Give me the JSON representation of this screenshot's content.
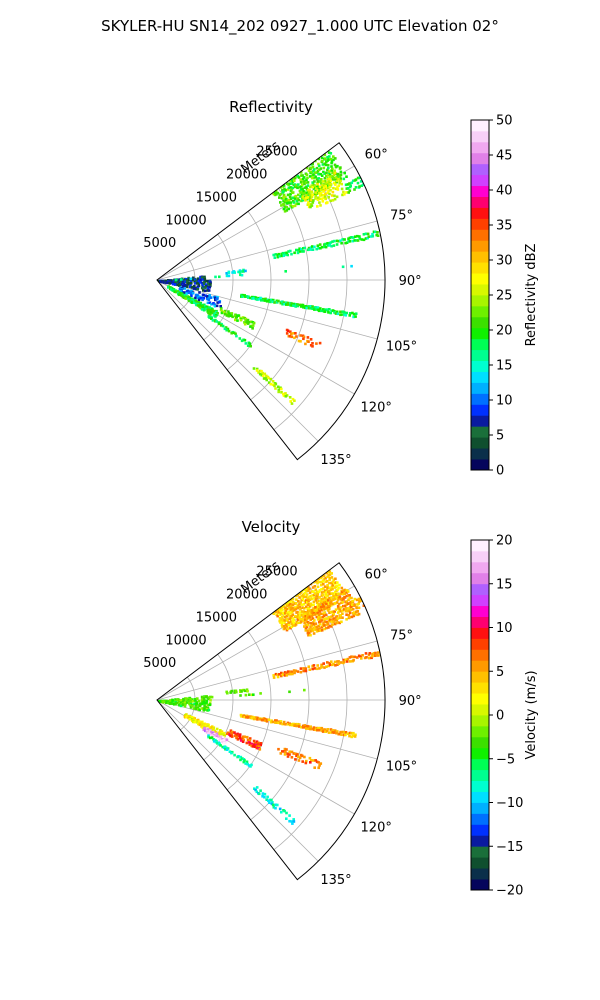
{
  "figure": {
    "title": "SKYLER-HU  SN14_202  0927_1.000 UTC Elevation 02°"
  },
  "chart_data": [
    {
      "type": "polar-sector",
      "title": "Reflectivity",
      "radial_label": "Meters",
      "radial_ticks": [
        5000,
        10000,
        15000,
        20000,
        25000
      ],
      "r_max_m": 30000,
      "theta_ticks": [
        "60°",
        "75°",
        "90°",
        "105°",
        "120°",
        "135°"
      ],
      "theta_range_deg": [
        53,
        142
      ],
      "colorbar": {
        "label": "Reflectivity dBZ",
        "min": 0,
        "max": 50,
        "ticks": [
          "0",
          "5",
          "10",
          "15",
          "20",
          "25",
          "30",
          "35",
          "40",
          "45",
          "50"
        ],
        "colors": [
          "#05055c",
          "#0a2f4a",
          "#0f4f2e",
          "#1a6f3a",
          "#0a1aa0",
          "#0030ff",
          "#0070ff",
          "#00b0ff",
          "#00dfff",
          "#00ffd0",
          "#00ff90",
          "#00ff55",
          "#10f000",
          "#3ce000",
          "#6ef000",
          "#a8f500",
          "#d8f800",
          "#ffff00",
          "#ffe000",
          "#ffc000",
          "#ff9a00",
          "#ff7000",
          "#ff4000",
          "#ff1010",
          "#ff0070",
          "#ff00d0",
          "#d040ff",
          "#b060ff",
          "#e080e8",
          "#f0a8f0",
          "#f8d0f8",
          "#fff0ff"
        ]
      },
      "echoes": [
        {
          "az": 57,
          "r0": 19000,
          "r1": 28500,
          "w": 9,
          "value": 21,
          "d": 0.7
        },
        {
          "az": 62,
          "r0": 22000,
          "r1": 27500,
          "w": 7,
          "value": 26,
          "d": 0.7
        },
        {
          "az": 64,
          "r0": 27500,
          "r1": 30000,
          "w": 3,
          "value": 19,
          "d": 0.7
        },
        {
          "az": 78,
          "r0": 15500,
          "r1": 30000,
          "w": 2,
          "value": 18,
          "d": 0.8
        },
        {
          "az": 100,
          "r0": 11000,
          "r1": 26500,
          "w": 1.5,
          "value": 18,
          "d": 0.9
        },
        {
          "az": 93,
          "r0": 0,
          "r1": 7000,
          "w": 18,
          "value": 6,
          "d": 0.35
        },
        {
          "az": 110,
          "r0": 3000,
          "r1": 9000,
          "w": 10,
          "value": 10,
          "d": 0.25
        },
        {
          "az": 120,
          "r0": 1500,
          "r1": 9000,
          "w": 6,
          "value": 19,
          "d": 0.6
        },
        {
          "az": 115,
          "r0": 9000,
          "r1": 14000,
          "w": 4,
          "value": 22,
          "d": 0.6
        },
        {
          "az": 112,
          "r0": 18000,
          "r1": 23000,
          "w": 3,
          "value": 33,
          "d": 0.6
        },
        {
          "az": 125,
          "r0": 8000,
          "r1": 15000,
          "w": 2,
          "value": 19,
          "d": 0.6
        },
        {
          "az": 132,
          "r0": 17000,
          "r1": 24000,
          "w": 2,
          "value": 25,
          "d": 0.7
        },
        {
          "az": 86,
          "r0": 1000,
          "r1": 28000,
          "w": 1.2,
          "value": 16,
          "d": 0.12
        },
        {
          "az": 83,
          "r0": 9000,
          "r1": 12000,
          "w": 2,
          "value": 15,
          "d": 0.5
        }
      ]
    },
    {
      "type": "polar-sector",
      "title": "Velocity",
      "radial_label": "Meters",
      "radial_ticks": [
        5000,
        10000,
        15000,
        20000,
        25000
      ],
      "r_max_m": 30000,
      "theta_ticks": [
        "60°",
        "75°",
        "90°",
        "105°",
        "120°",
        "135°"
      ],
      "theta_range_deg": [
        53,
        142
      ],
      "colorbar": {
        "label": "Velocity (m/s)",
        "min": -20,
        "max": 20,
        "ticks": [
          "−20",
          "−15",
          "−10",
          "−5",
          "0",
          "5",
          "10",
          "15",
          "20"
        ],
        "colors": [
          "#05055c",
          "#0a2f4a",
          "#0f4f2e",
          "#1a6f3a",
          "#0a1aa0",
          "#0030ff",
          "#0070ff",
          "#00b0ff",
          "#00dfff",
          "#00ffd0",
          "#00ff90",
          "#00ff55",
          "#10f000",
          "#3ce000",
          "#6ef000",
          "#a8f500",
          "#d8f800",
          "#ffff00",
          "#ffe000",
          "#ffc000",
          "#ff9a00",
          "#ff7000",
          "#ff4000",
          "#ff1010",
          "#ff0070",
          "#ff00d0",
          "#d040ff",
          "#b060ff",
          "#e080e8",
          "#f0a8f0",
          "#f8d0f8",
          "#fff0ff"
        ]
      },
      "echoes": [
        {
          "az": 57,
          "r0": 19000,
          "r1": 28500,
          "w": 9,
          "value": 4,
          "d": 0.85
        },
        {
          "az": 63,
          "r0": 21500,
          "r1": 29000,
          "w": 8,
          "value": 5,
          "d": 0.85
        },
        {
          "az": 64,
          "r0": 27500,
          "r1": 30000,
          "w": 3,
          "value": 5,
          "d": 0.8
        },
        {
          "az": 78,
          "r0": 15500,
          "r1": 30000,
          "w": 2,
          "value": 6,
          "d": 0.8
        },
        {
          "az": 100,
          "r0": 11000,
          "r1": 26500,
          "w": 1.5,
          "value": 5,
          "d": 0.9
        },
        {
          "az": 93,
          "r0": 0,
          "r1": 7000,
          "w": 18,
          "value": -3,
          "d": 0.3
        },
        {
          "az": 118,
          "r0": 4000,
          "r1": 10000,
          "w": 6,
          "value": 2,
          "d": 0.6
        },
        {
          "az": 121,
          "r0": 7000,
          "r1": 10500,
          "w": 4,
          "value": 17,
          "d": 0.8
        },
        {
          "az": 114,
          "r0": 10000,
          "r1": 15000,
          "w": 4,
          "value": 8,
          "d": 0.6
        },
        {
          "az": 112,
          "r0": 17000,
          "r1": 23000,
          "w": 3,
          "value": 7,
          "d": 0.6
        },
        {
          "az": 125,
          "r0": 8000,
          "r1": 15000,
          "w": 2,
          "value": -7,
          "d": 0.7
        },
        {
          "az": 132,
          "r0": 17000,
          "r1": 24000,
          "w": 2,
          "value": -8,
          "d": 0.7
        },
        {
          "az": 86,
          "r0": 1000,
          "r1": 28000,
          "w": 1.2,
          "value": -2,
          "d": 0.12
        },
        {
          "az": 83,
          "r0": 9000,
          "r1": 12000,
          "w": 2,
          "value": -2,
          "d": 0.6
        }
      ]
    }
  ]
}
